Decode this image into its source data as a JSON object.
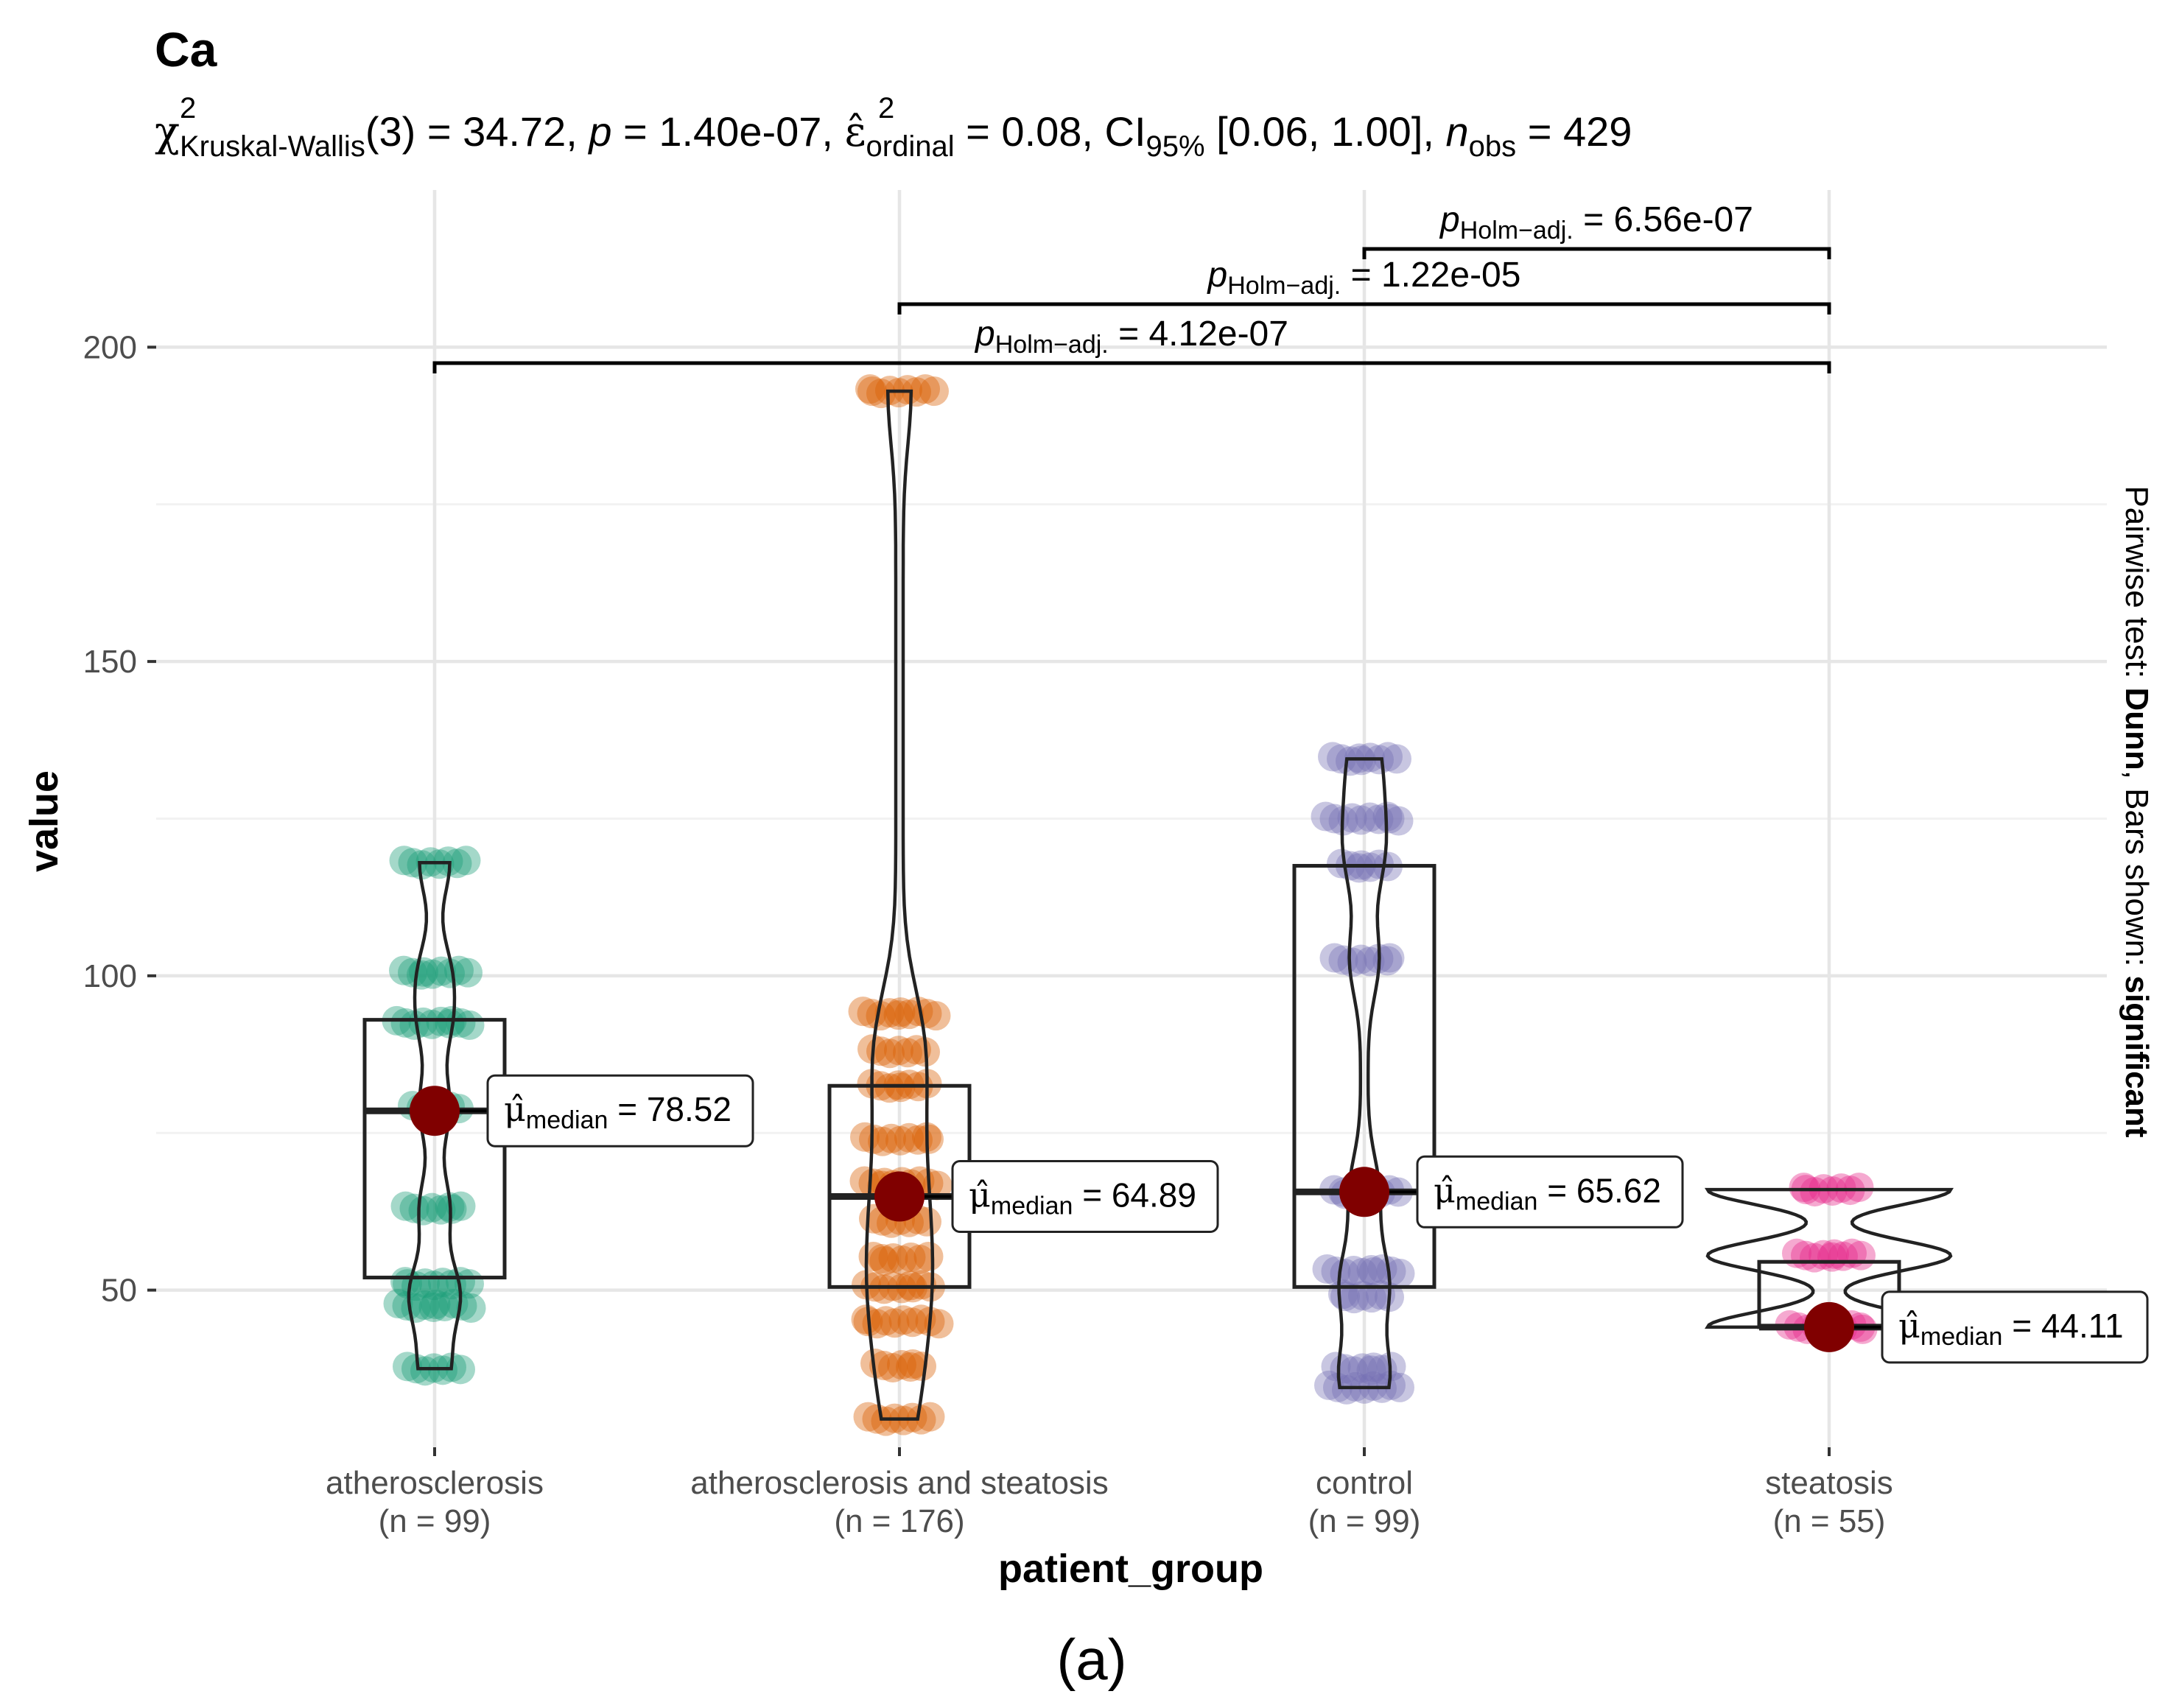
{
  "chart_data": {
    "type": "violin-box-scatter",
    "title": "Ca",
    "subtitle": {
      "stat_sub": "Kruskal-Wallis",
      "stat_sup": "2",
      "df": "(3)",
      "stat_value": " = 34.72, ",
      "p_symbol": "p",
      "p_value": " = 1.40e-07, ",
      "effect_sub": "ordinal",
      "effect_sup": "2",
      "effect_value": " = 0.08, CI",
      "ci_sub": "95%",
      "ci_value": " [0.06, 1.00], ",
      "n_symbol": "n",
      "n_sub": "obs",
      "n_value": " = 429"
    },
    "xlabel": "patient_group",
    "ylabel": "value",
    "ylim": [
      25,
      225
    ],
    "yticks": [
      50,
      100,
      150,
      200
    ],
    "y_minor": [
      75,
      125,
      175
    ],
    "right_caption": {
      "prefix": "Pairwise test: ",
      "test": "Dunn",
      "middle": ", Bars shown: ",
      "bars": "significant"
    },
    "figure_label": "(a)",
    "median_label_prefix": "median",
    "groups": [
      {
        "name": "atherosclerosis",
        "n_label": "(n = 99)",
        "color": "#1b9e77",
        "median": 78.52,
        "median_label": " = 78.52",
        "q1": 52,
        "q3": 93,
        "min": 37.5,
        "max": 118,
        "levels": [
          37.5,
          47.5,
          51,
          63,
          79,
          92.5,
          100.5,
          118
        ]
      },
      {
        "name": "atherosclerosis and steatosis",
        "n_label": "(n = 176)",
        "color": "#d95f02",
        "median": 64.89,
        "median_label": " = 64.89",
        "q1": 50.5,
        "q3": 82.5,
        "min": 29.5,
        "max": 193,
        "levels": [
          29.5,
          38,
          45,
          50.5,
          55,
          61,
          67,
          74,
          82.5,
          88,
          94,
          193
        ]
      },
      {
        "name": "control",
        "n_label": "(n = 99)",
        "color": "#7570b3",
        "median": 65.62,
        "median_label": " = 65.62",
        "q1": 50.5,
        "q3": 117.5,
        "min": 34.5,
        "max": 134.5,
        "levels": [
          34.5,
          37.5,
          49,
          53,
          65.6,
          102.5,
          117.5,
          125,
          134.5
        ]
      },
      {
        "name": "steatosis",
        "n_label": "(n = 55)",
        "color": "#e7298a",
        "median": 44.11,
        "median_label": " = 44.11",
        "q1": 44.11,
        "q3": 54.5,
        "min": 44.11,
        "max": 66,
        "levels": [
          44.11,
          55.5,
          66
        ]
      }
    ],
    "pairwise": [
      {
        "from": 2,
        "to": 3,
        "label_sub": "Holm−adj.",
        "label_value": " = 6.56e-07"
      },
      {
        "from": 1,
        "to": 3,
        "label_sub": "Holm−adj.",
        "label_value": " = 1.22e-05"
      },
      {
        "from": 0,
        "to": 3,
        "label_sub": "Holm−adj.",
        "label_value": " = 4.12e-07"
      }
    ],
    "pairwise_symbol": "p"
  }
}
